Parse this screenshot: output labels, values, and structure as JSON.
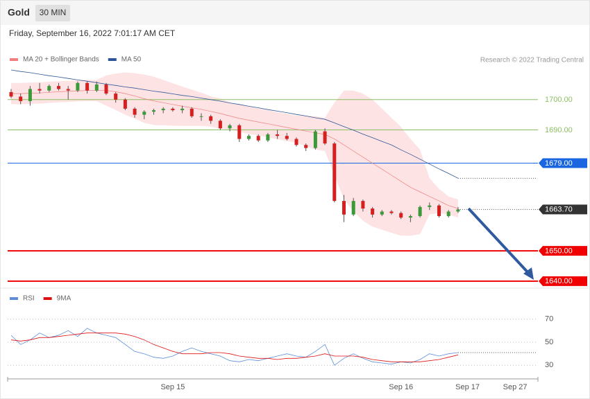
{
  "header": {
    "symbol": "Gold",
    "interval": "30 MIN",
    "timestamp": "Friday, September 16, 2022 7:01:17 AM CET"
  },
  "chart_data": [
    {
      "type": "candlestick",
      "watermark": "Research © 2022 Trading Central",
      "categories": [
        null,
        null,
        null,
        null,
        null,
        null,
        null,
        null,
        null,
        null,
        null,
        null,
        null,
        null,
        null,
        null,
        null,
        "Sep 15",
        null,
        null,
        null,
        null,
        null,
        null,
        null,
        null,
        null,
        null,
        null,
        null,
        null,
        null,
        null,
        null,
        null,
        null,
        null,
        null,
        null,
        null,
        null,
        "Sep 16",
        null,
        null,
        null,
        null,
        null,
        null,
        "Sep 17",
        null,
        null,
        null,
        null,
        "Sep 27",
        null
      ],
      "open": [
        1702.5,
        1701.0,
        1699.5,
        1703.5,
        1703.0,
        1704.5,
        1703.5,
        1703.0,
        1705.5,
        1703.0,
        1705.0,
        1702.0,
        1700.0,
        1697.0,
        1695.0,
        1696.0,
        1696.5,
        1697.0,
        1696.5,
        1697.0,
        1694.5,
        1694.5,
        1693.0,
        1690.5,
        1691.5,
        1687.0,
        1688.0,
        1686.5,
        1688.5,
        1688.0,
        1687.0,
        1685.0,
        1684.0,
        1689.5,
        1685.5,
        1666.5,
        1662.0,
        1666.5,
        1664.0,
        1662.0,
        1663.0,
        1662.5,
        1661.0,
        1661.5,
        1664.5,
        1665.0,
        1661.5,
        1663.0,
        null,
        null,
        null,
        null,
        null,
        null,
        null
      ],
      "high": [
        1703.5,
        1702.0,
        1704.5,
        1705.5,
        1705.0,
        1705.5,
        1704.5,
        1706.0,
        1706.0,
        1706.0,
        1705.5,
        1702.5,
        1700.5,
        1697.5,
        1696.5,
        1697.0,
        1697.5,
        1697.5,
        1698.0,
        1697.5,
        1695.5,
        1695.0,
        1693.5,
        1692.0,
        1692.0,
        1688.5,
        1688.5,
        1689.0,
        1690.0,
        1689.0,
        1687.5,
        1685.5,
        1690.0,
        1690.5,
        1686.0,
        1668.5,
        1667.5,
        1667.0,
        1664.5,
        1663.5,
        1663.5,
        1663.0,
        1662.0,
        1665.0,
        1666.0,
        1665.5,
        1663.5,
        1664.5,
        null,
        null,
        null,
        null,
        null,
        null,
        null
      ],
      "low": [
        1700.5,
        1698.5,
        1698.0,
        1702.0,
        1702.5,
        1703.0,
        1700.0,
        1702.5,
        1702.0,
        1702.5,
        1701.5,
        1699.0,
        1696.5,
        1694.0,
        1693.5,
        1695.0,
        1695.5,
        1696.0,
        1695.5,
        1694.0,
        1693.0,
        1692.0,
        1690.0,
        1689.5,
        1686.0,
        1686.5,
        1686.0,
        1686.0,
        1687.0,
        1686.5,
        1684.5,
        1683.0,
        1683.5,
        1685.0,
        1666.0,
        1659.5,
        1661.5,
        1663.0,
        1661.0,
        1661.5,
        1662.0,
        1660.5,
        1659.5,
        1661.0,
        1663.5,
        1661.0,
        1661.0,
        1662.5,
        null,
        null,
        null,
        null,
        null,
        null,
        null
      ],
      "close": [
        1701.0,
        1699.5,
        1703.5,
        1703.0,
        1704.5,
        1703.5,
        1703.0,
        1705.5,
        1703.0,
        1705.0,
        1702.0,
        1700.0,
        1697.0,
        1695.0,
        1696.0,
        1696.5,
        1697.0,
        1696.5,
        1697.0,
        1694.5,
        1694.5,
        1693.0,
        1690.5,
        1691.5,
        1687.0,
        1688.0,
        1686.5,
        1688.5,
        1688.0,
        1687.0,
        1685.0,
        1684.0,
        1689.5,
        1685.5,
        1666.5,
        1662.0,
        1666.5,
        1664.0,
        1662.0,
        1663.0,
        1662.5,
        1661.0,
        1661.5,
        1664.5,
        1665.0,
        1661.5,
        1663.0,
        1663.7,
        null,
        null,
        null,
        null,
        null,
        null,
        null
      ],
      "up_color": "#3a9a3a",
      "down_color": "#d62020",
      "series": [
        {
          "name": "MA 20 + Bollinger Bands",
          "color": "#f08080",
          "band_color": "#fde3e3",
          "values": [
            1702.0,
            1702.0,
            1702.1,
            1702.2,
            1702.4,
            1702.6,
            1702.7,
            1702.9,
            1703.0,
            1703.0,
            1703.0,
            1702.6,
            1702.0,
            1701.2,
            1700.3,
            1699.6,
            1699.0,
            1698.4,
            1697.8,
            1697.3,
            1696.8,
            1696.1,
            1695.4,
            1694.6,
            1693.8,
            1693.2,
            1692.6,
            1692.0,
            1691.4,
            1690.8,
            1690.2,
            1689.6,
            1689.0,
            1688.5,
            1687.0,
            1685.0,
            1683.0,
            1681.0,
            1679.0,
            1677.0,
            1675.0,
            1673.0,
            1671.0,
            1669.5,
            1668.0,
            1666.5,
            1665.0,
            1664.0,
            null,
            null,
            null,
            null,
            null,
            null,
            null
          ],
          "upper": [
            1705.5,
            1705.5,
            1705.6,
            1705.7,
            1705.9,
            1706.1,
            1706.2,
            1706.4,
            1706.5,
            1706.5,
            1708.0,
            1708.6,
            1709.0,
            1708.7,
            1708.3,
            1707.6,
            1706.5,
            1705.4,
            1704.3,
            1703.3,
            1702.3,
            1701.1,
            1700.4,
            1699.1,
            1698.3,
            1697.7,
            1697.1,
            1696.5,
            1695.9,
            1695.3,
            1694.7,
            1694.6,
            1694.5,
            1694.0,
            1699.0,
            1703.0,
            1703.0,
            1702.0,
            1700.0,
            1697.0,
            1694.0,
            1691.0,
            1687.0,
            1683.5,
            1674.0,
            1670.5,
            1668.0,
            1667.0,
            null,
            null,
            null,
            null,
            null,
            null,
            null
          ],
          "lower": [
            1698.5,
            1698.5,
            1698.6,
            1698.7,
            1698.9,
            1699.1,
            1699.2,
            1699.4,
            1699.5,
            1699.5,
            1698.0,
            1696.6,
            1695.0,
            1693.7,
            1692.3,
            1691.6,
            1691.5,
            1691.4,
            1691.3,
            1691.3,
            1691.3,
            1691.1,
            1690.4,
            1690.1,
            1689.3,
            1688.7,
            1688.1,
            1687.5,
            1686.9,
            1686.3,
            1685.7,
            1684.6,
            1683.5,
            1683.0,
            1675.0,
            1667.0,
            1663.0,
            1660.0,
            1658.0,
            1657.0,
            1656.0,
            1655.0,
            1655.0,
            1655.5,
            1662.0,
            1662.5,
            1662.0,
            1661.0,
            null,
            null,
            null,
            null,
            null,
            null,
            null
          ]
        },
        {
          "name": "MA 50",
          "color": "#2f5597",
          "values": [
            1709.8,
            1709.3,
            1708.9,
            1708.4,
            1707.9,
            1707.5,
            1707.0,
            1706.5,
            1706.1,
            1705.6,
            1705.1,
            1704.7,
            1704.2,
            1703.8,
            1703.3,
            1702.8,
            1702.4,
            1701.9,
            1701.4,
            1701.0,
            1700.5,
            1700.0,
            1699.5,
            1698.9,
            1698.4,
            1697.8,
            1697.3,
            1696.7,
            1696.2,
            1695.7,
            1695.1,
            1694.6,
            1694.0,
            1693.5,
            1692.3,
            1691.1,
            1689.9,
            1688.6,
            1687.4,
            1686.2,
            1685.0,
            1683.4,
            1681.9,
            1680.3,
            1678.7,
            1677.1,
            1675.6,
            1674.0,
            null,
            null,
            null,
            null,
            null,
            null,
            null
          ]
        }
      ],
      "levels": [
        {
          "value": 1700,
          "label": "1700.00",
          "color": "#8cc063",
          "style": "text",
          "line": "solid",
          "width": 1
        },
        {
          "value": 1690,
          "label": "1690.00",
          "color": "#8cc063",
          "style": "text",
          "line": "solid",
          "width": 1
        },
        {
          "value": 1679,
          "label": "1679.00",
          "color": "#1a66e0",
          "style": "box",
          "line": "solid",
          "width": 1
        },
        {
          "value": 1663.7,
          "label": "1663.70",
          "color": "#333333",
          "style": "box",
          "line": "dotted",
          "width": 1
        },
        {
          "value": 1650,
          "label": "1650.00",
          "color": "#f00000",
          "style": "box",
          "line": "solid",
          "width": 2
        },
        {
          "value": 1640,
          "label": "1640.00",
          "color": "#f00000",
          "style": "box",
          "line": "solid",
          "width": 2
        }
      ],
      "ylim": [
        1637.9,
        1716.9
      ]
    },
    {
      "type": "line",
      "series": [
        {
          "name": "RSI",
          "color": "#5b8dd9",
          "values": [
            56,
            48,
            52,
            58,
            54,
            56,
            60,
            55,
            62,
            58,
            56,
            54,
            48,
            42,
            40,
            37,
            36,
            38,
            42,
            45,
            42,
            40,
            38,
            34,
            33,
            35,
            34,
            36,
            38,
            40,
            38,
            37,
            42,
            48,
            30,
            36,
            40,
            36,
            33,
            32,
            31,
            33,
            32,
            35,
            40,
            38,
            40,
            41,
            null,
            null,
            null,
            null,
            null,
            null,
            null
          ]
        },
        {
          "name": "9MA",
          "color": "#e01010",
          "values": [
            52,
            51,
            52,
            54,
            54,
            55,
            56,
            57,
            58,
            58,
            58,
            58,
            57,
            55,
            52,
            48,
            45,
            42,
            40,
            40,
            40,
            41,
            41,
            40,
            38,
            37,
            36,
            36,
            35,
            36,
            36,
            37,
            38,
            40,
            38,
            38,
            38,
            37,
            35,
            34,
            33,
            33,
            33,
            33,
            34,
            35,
            37,
            39,
            null,
            null,
            null,
            null,
            null,
            null,
            null
          ]
        }
      ],
      "ylim": [
        20,
        95
      ],
      "yticks": [
        30,
        50,
        70
      ]
    }
  ]
}
